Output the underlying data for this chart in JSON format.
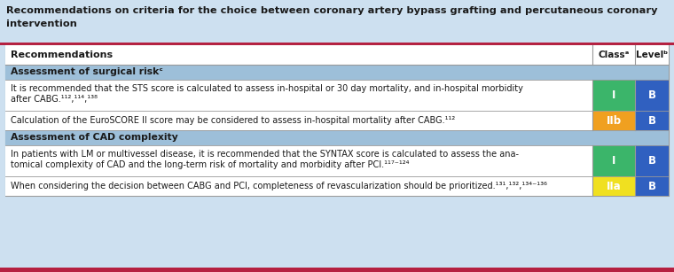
{
  "title_line1": "Recommendations on criteria for the choice between coronary artery bypass grafting and percutaneous coronary",
  "title_line2": "intervention",
  "title_bg": "#cde0f0",
  "title_color": "#1a1a1a",
  "crimson_line": "#b52040",
  "table_bg": "#ffffff",
  "header_text": "Recommendations",
  "col1_header": "Classᵃ",
  "col2_header": "Levelᵇ",
  "section_bg": "#9dbfd9",
  "rows": [
    {
      "type": "section",
      "text": "Assessment of surgical riskᶜ"
    },
    {
      "type": "data",
      "text1": "It is recommended that the STS score is calculated to assess in-hospital or 30 day mortality, and in-hospital morbidity",
      "text2": "after CABG.¹¹²,¹¹⁴,¹³⁸",
      "class_val": "I",
      "class_color": "#3bb56a",
      "level_val": "B",
      "level_color": "#3060c0"
    },
    {
      "type": "data",
      "text1": "Calculation of the EuroSCORE II score may be considered to assess in-hospital mortality after CABG.¹¹²",
      "text2": "",
      "class_val": "IIb",
      "class_color": "#f0a020",
      "level_val": "B",
      "level_color": "#3060c0"
    },
    {
      "type": "section",
      "text": "Assessment of CAD complexity"
    },
    {
      "type": "data",
      "text1": "In patients with LM or multivessel disease, it is recommended that the SYNTAX score is calculated to assess the ana-",
      "text2": "tomical complexity of CAD and the long-term risk of mortality and morbidity after PCI.¹¹⁷⁻¹²⁴",
      "class_val": "I",
      "class_color": "#3bb56a",
      "level_val": "B",
      "level_color": "#3060c0"
    },
    {
      "type": "data",
      "text1": "When considering the decision between CABG and PCI, completeness of revascularization should be prioritized.¹³¹,¹³²,¹³⁴⁻¹³⁶",
      "text2": "",
      "class_val": "IIa",
      "class_color": "#f0e020",
      "level_val": "B",
      "level_color": "#3060c0"
    }
  ],
  "border_color": "#999999"
}
